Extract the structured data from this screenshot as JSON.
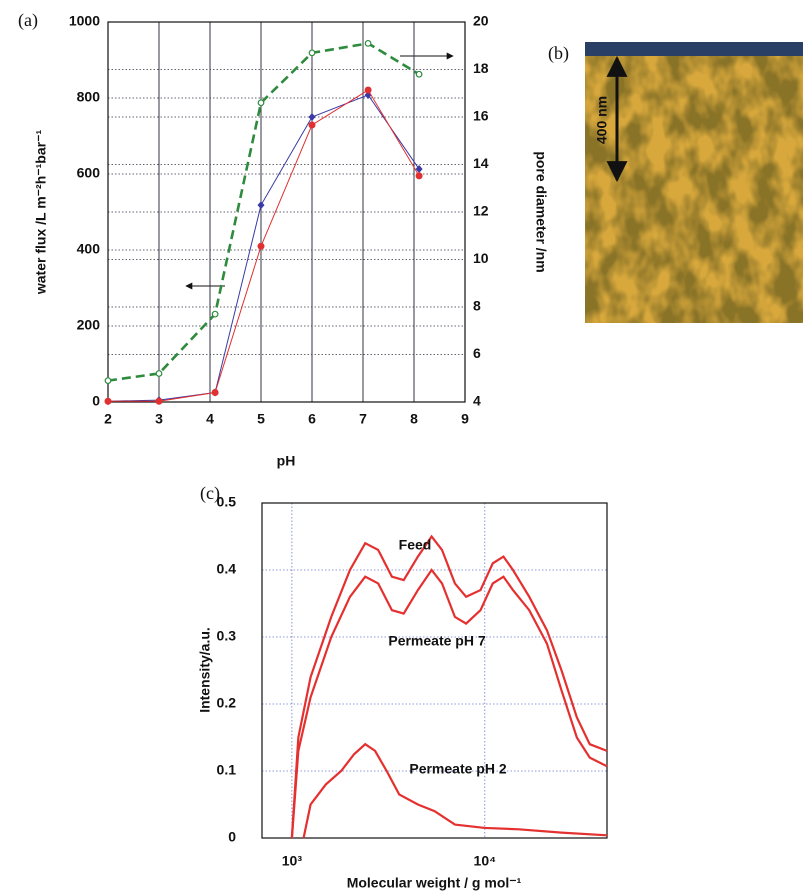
{
  "chart_data": [
    {
      "type": "line",
      "panel_label": "(a)",
      "xlabel": "pH",
      "ylabel": "water flux /L m⁻²h⁻¹bar⁻¹",
      "y2label": "pore diameter /nm",
      "x": [
        2,
        3,
        4.1,
        5,
        6,
        7.1,
        8.1
      ],
      "series": [
        {
          "color": "#2e8b3e",
          "dashed": true,
          "marker": "open-circle",
          "axis": "y2",
          "values": [
            4.9,
            5.2,
            7.7,
            16.6,
            18.7,
            19.1,
            17.8
          ]
        },
        {
          "color": "#3a3aa6",
          "dashed": false,
          "marker": "diamond",
          "values": [
            2,
            5,
            25,
            518,
            750,
            808,
            613
          ]
        },
        {
          "color": "#e03030",
          "dashed": false,
          "marker": "circle",
          "values": [
            2,
            2,
            25,
            410,
            729,
            821,
            595
          ]
        }
      ],
      "xlim": [
        2,
        9
      ],
      "xticks": [
        2,
        3,
        4,
        5,
        6,
        7,
        8,
        9
      ],
      "ylim": [
        0,
        1000
      ],
      "yticks": [
        0,
        200,
        400,
        600,
        800,
        1000
      ],
      "y2lim": [
        4,
        20
      ],
      "y2ticks": [
        4,
        6,
        8,
        10,
        12,
        14,
        16,
        18,
        20
      ],
      "grid": true,
      "xlog": false
    },
    {
      "type": "line",
      "panel_label": "(c)",
      "xlabel": "Molecular weight / g mol⁻¹",
      "ylabel": "Intensity/a.u.",
      "series": [
        {
          "name": "Feed",
          "color": "#e53030",
          "x": [
            1000,
            1080,
            1250,
            1600,
            2000,
            2400,
            2800,
            3300,
            3800,
            4500,
            5300,
            6000,
            7000,
            8000,
            9500,
            11000,
            12500,
            14000,
            17000,
            21000,
            25000,
            30000,
            35000,
            43000
          ],
          "values": [
            0,
            0.15,
            0.24,
            0.33,
            0.4,
            0.44,
            0.43,
            0.39,
            0.385,
            0.42,
            0.45,
            0.43,
            0.38,
            0.36,
            0.37,
            0.41,
            0.42,
            0.4,
            0.36,
            0.31,
            0.25,
            0.18,
            0.14,
            0.13
          ]
        },
        {
          "name": "Permeate pH 7",
          "color": "#e53030",
          "x": [
            1000,
            1080,
            1250,
            1600,
            2000,
            2400,
            2800,
            3300,
            3800,
            4500,
            5300,
            6000,
            7000,
            8000,
            9500,
            11000,
            12500,
            14000,
            17000,
            21000,
            25000,
            30000,
            35000,
            43000
          ],
          "values": [
            0,
            0.13,
            0.21,
            0.3,
            0.36,
            0.39,
            0.38,
            0.34,
            0.335,
            0.37,
            0.4,
            0.38,
            0.33,
            0.32,
            0.34,
            0.38,
            0.39,
            0.37,
            0.34,
            0.29,
            0.22,
            0.15,
            0.12,
            0.107
          ]
        },
        {
          "name": "Permeate pH 2",
          "color": "#e53030",
          "x": [
            1150,
            1250,
            1500,
            1800,
            2100,
            2400,
            2700,
            3100,
            3600,
            4500,
            5500,
            7000,
            10000,
            15000,
            25000,
            43000
          ],
          "values": [
            0,
            0.05,
            0.08,
            0.1,
            0.125,
            0.14,
            0.13,
            0.1,
            0.065,
            0.05,
            0.04,
            0.02,
            0.015,
            0.013,
            0.008,
            0.004
          ]
        }
      ],
      "xlim": [
        700,
        43000
      ],
      "xticks": [
        {
          "value": 1000,
          "label": "10³"
        },
        {
          "value": 10000,
          "label": "10⁴"
        }
      ],
      "ylim": [
        0,
        0.5
      ],
      "yticks": [
        0,
        0.1,
        0.2,
        0.3,
        0.4,
        0.5
      ],
      "grid": true,
      "xlog": true
    }
  ],
  "image_panel": {
    "label": "(b)",
    "scale_bar": "400 nm"
  }
}
